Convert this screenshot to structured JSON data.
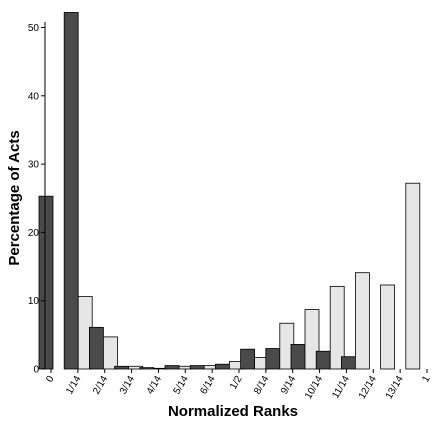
{
  "chart_data": {
    "type": "bar",
    "xlabel": "Normalized Ranks",
    "ylabel": "Percentage of Acts",
    "ylim": [
      0,
      53
    ],
    "yticks": [
      0,
      10,
      20,
      30,
      40,
      50
    ],
    "categories": [
      "0",
      "1/14",
      "2/14",
      "3/14",
      "4/14",
      "5/14",
      "6/14",
      "1/2",
      "8/14",
      "9/14",
      "10/14",
      "11/14",
      "12/14",
      "13/14",
      "1"
    ],
    "series": [
      {
        "color": "#4a4a4a",
        "values": [
          25.3,
          52.2,
          6.1,
          0.4,
          0.2,
          0.5,
          0.5,
          0.7,
          2.9,
          3.0,
          3.6,
          2.6,
          1.8,
          0.0,
          0.0
        ]
      },
      {
        "color": "#e6e6e6",
        "values": [
          0.0,
          10.6,
          4.7,
          0.4,
          0.1,
          0.4,
          0.5,
          1.1,
          1.7,
          6.7,
          8.7,
          12.1,
          14.1,
          12.3,
          27.2
        ]
      }
    ],
    "grid": false
  }
}
